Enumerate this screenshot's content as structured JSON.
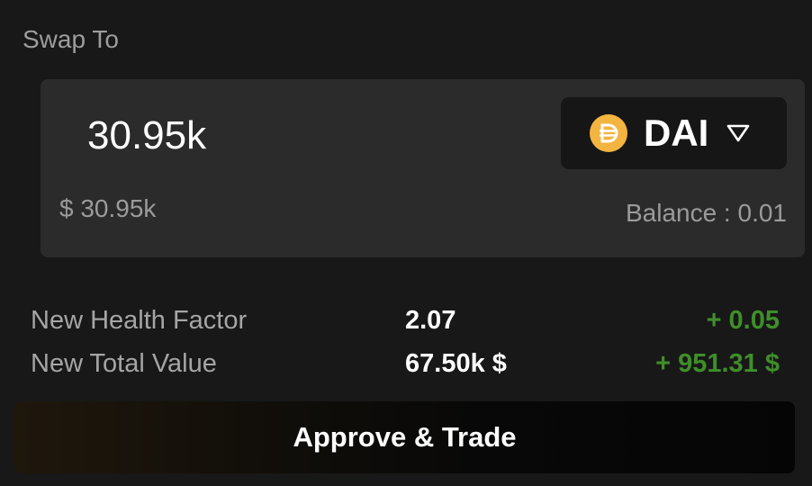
{
  "swap_to": {
    "label": "Swap To",
    "amount": "30.95k",
    "usd_value": "$ 30.95k",
    "token": {
      "symbol": "DAI",
      "icon": "dai-icon",
      "icon_color": "#F4B440"
    },
    "balance_text": "Balance : 0.01"
  },
  "stats": [
    {
      "label": "New Health Factor",
      "value": "2.07",
      "delta": "+ 0.05"
    },
    {
      "label": "New Total Value",
      "value": "67.50k $",
      "delta": "+ 951.31 $"
    }
  ],
  "colors": {
    "positive": "#3F8E2A"
  },
  "action": {
    "label": "Approve & Trade"
  }
}
